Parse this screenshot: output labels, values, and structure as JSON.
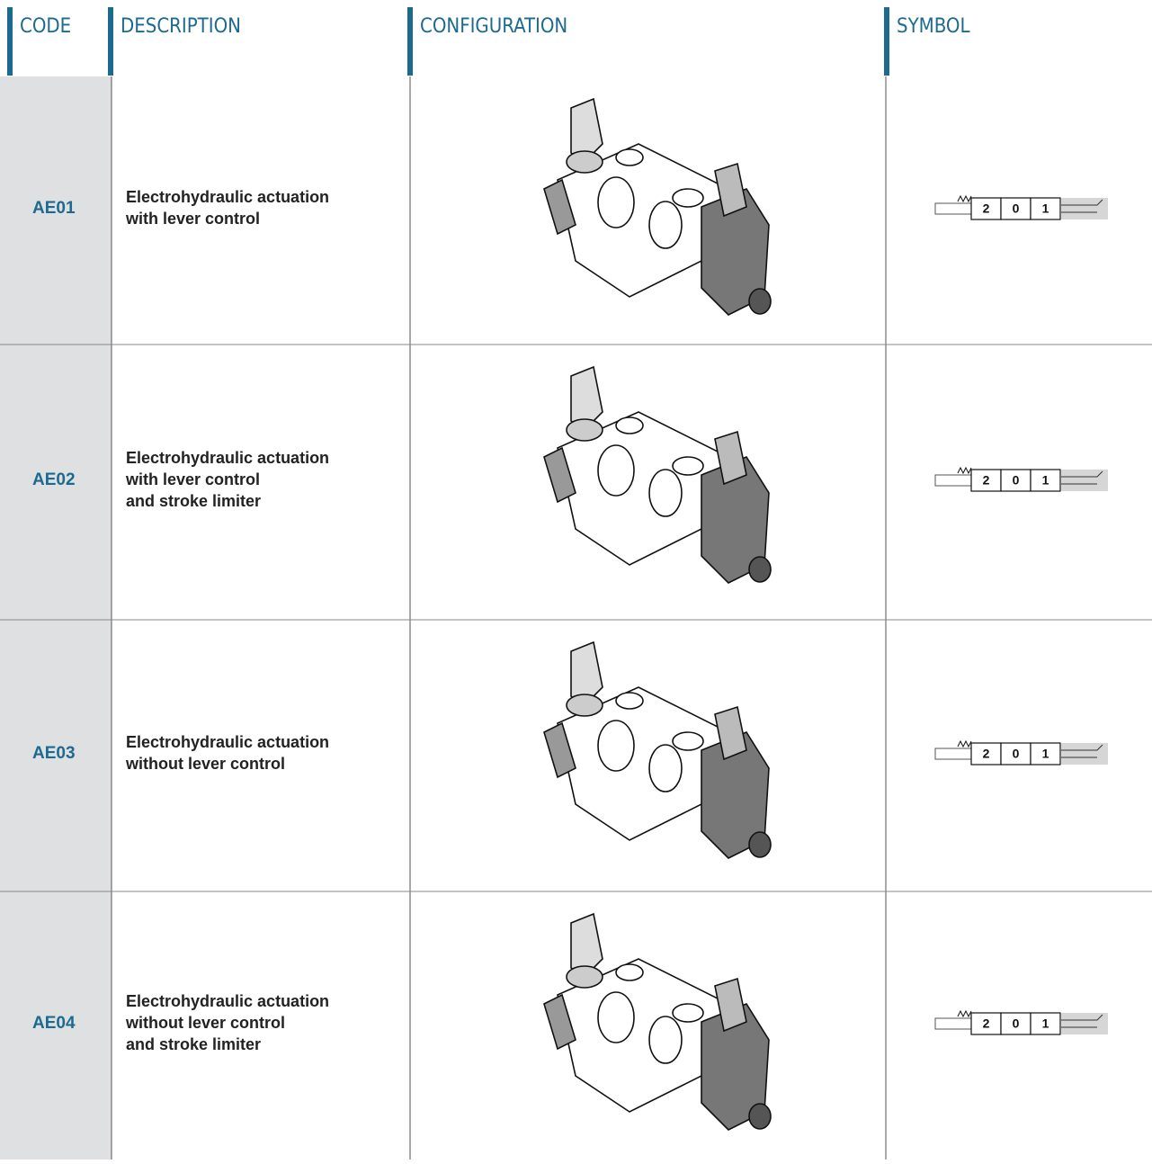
{
  "header": {
    "columns": [
      "CODE",
      "DESCRIPTION",
      "CONFIGURATION",
      "SYMBOL"
    ]
  },
  "table": {
    "rows": [
      {
        "code": "AE01",
        "description": [
          "Electrohydraulic actuation",
          "with lever control"
        ],
        "symbol": [
          "2",
          "0",
          "1"
        ]
      },
      {
        "code": "AE02",
        "description": [
          "Electrohydraulic actuation",
          "with lever control",
          "and stroke limiter"
        ],
        "symbol": [
          "2",
          "0",
          "1"
        ]
      },
      {
        "code": "AE03",
        "description": [
          "Electrohydraulic actuation",
          "without lever control"
        ],
        "symbol": [
          "2",
          "0",
          "1"
        ]
      },
      {
        "code": "AE04",
        "description": [
          "Electrohydraulic actuation",
          "without lever control",
          "and stroke limiter"
        ],
        "symbol": [
          "2",
          "0",
          "1"
        ]
      }
    ]
  }
}
